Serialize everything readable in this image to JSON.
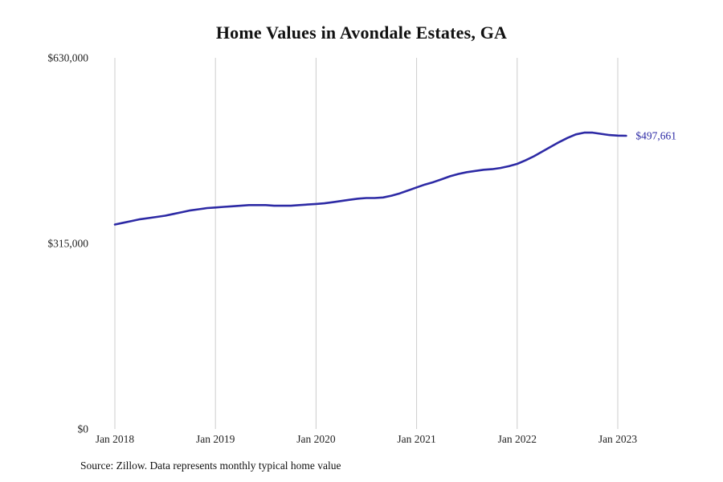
{
  "chart_data": {
    "type": "line",
    "title": "Home Values in Avondale Estates, GA",
    "xlabel": "",
    "ylabel": "",
    "ylim": [
      0,
      630000
    ],
    "grid": "vertical-only",
    "legend": "none",
    "line_color": "#2d2aa5",
    "gridline_color": "#cccccc",
    "axis_text_color": "#222222",
    "y_ticks": [
      {
        "label": "$0",
        "value": 0
      },
      {
        "label": "$315,000",
        "value": 315000
      },
      {
        "label": "$630,000",
        "value": 630000
      }
    ],
    "x_ticks": [
      {
        "label": "Jan 2018",
        "month_index": 0
      },
      {
        "label": "Jan 2019",
        "month_index": 12
      },
      {
        "label": "Jan 2020",
        "month_index": 24
      },
      {
        "label": "Jan 2021",
        "month_index": 36
      },
      {
        "label": "Jan 2022",
        "month_index": 48
      },
      {
        "label": "Jan 2023",
        "month_index": 60
      }
    ],
    "series": [
      {
        "name": "Monthly typical home value",
        "start_month": "Jan 2018",
        "end_month": "Feb 2023",
        "values": [
          347000,
          350000,
          353000,
          356000,
          358000,
          360000,
          362000,
          365000,
          368000,
          371000,
          373000,
          375000,
          376000,
          377000,
          378000,
          379000,
          380000,
          380000,
          380000,
          379000,
          379000,
          379000,
          380000,
          381000,
          382000,
          383000,
          385000,
          387000,
          389000,
          391000,
          392000,
          392000,
          393000,
          396000,
          400000,
          405000,
          410000,
          415000,
          419000,
          424000,
          429000,
          433000,
          436000,
          438000,
          440000,
          441000,
          443000,
          446000,
          450000,
          456000,
          463000,
          471000,
          479000,
          487000,
          494000,
          500000,
          503000,
          503000,
          501000,
          499000,
          498000,
          497661
        ]
      }
    ],
    "end_label": "$497,661",
    "source_note": "Source: Zillow. Data represents monthly typical home value"
  }
}
